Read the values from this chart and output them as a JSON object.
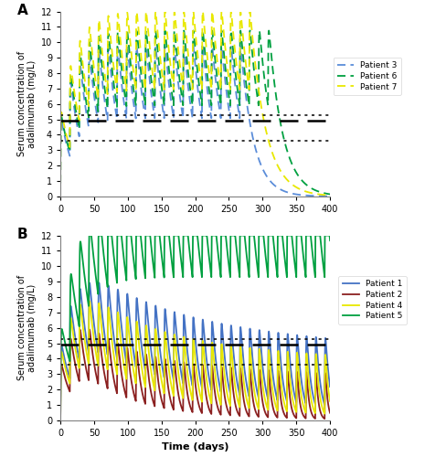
{
  "panel_A_label": "A",
  "panel_B_label": "B",
  "xlabel": "Time (days)",
  "ylabel": "Serum concentration of\nadalimumab (mg/L)",
  "xlim": [
    0,
    400
  ],
  "ylim": [
    0,
    12
  ],
  "yticks": [
    0,
    1,
    2,
    3,
    4,
    5,
    6,
    7,
    8,
    9,
    10,
    11,
    12
  ],
  "xticks": [
    0,
    50,
    100,
    150,
    200,
    250,
    300,
    350,
    400
  ],
  "threshold_upper_dotted": 5.3,
  "threshold_middle_dashed": 4.9,
  "threshold_lower_dotted": 3.6,
  "colors": {
    "patient1": "#4472C4",
    "patient2": "#8B2020",
    "patient3": "#5B8DD9",
    "patient4": "#E8E800",
    "patient5": "#00A040",
    "patient6": "#00A040",
    "patient7": "#E8E800"
  }
}
